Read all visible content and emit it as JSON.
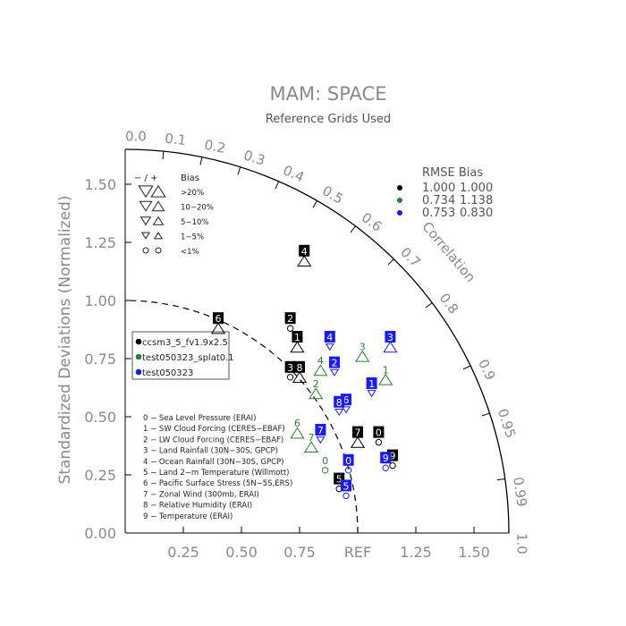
{
  "chart_data": {
    "type": "scatter",
    "subtype": "taylor-diagram",
    "title": "MAM: SPACE",
    "subtitle": "Reference Grids Used",
    "ylabel": "Standardized Deviations (Normalized)",
    "correlation_label": "Correlation",
    "ref_label": "REF",
    "std_range": [
      0,
      1.65
    ],
    "x_ticks": [
      "0.25",
      "0.50",
      "0.75",
      "REF",
      "1.25",
      "1.50"
    ],
    "x_tick_values": [
      0.25,
      0.5,
      0.75,
      1.0,
      1.25,
      1.5
    ],
    "y_ticks": [
      "0.00",
      "0.25",
      "0.50",
      "0.75",
      "1.00",
      "1.25",
      "1.50"
    ],
    "y_tick_values": [
      0,
      0.25,
      0.5,
      0.75,
      1.0,
      1.25,
      1.5
    ],
    "corr_ticks": [
      "0.0",
      "0.1",
      "0.2",
      "0.3",
      "0.4",
      "0.5",
      "0.6",
      "0.7",
      "0.8",
      "0.9",
      "0.95",
      "0.99",
      "1.0"
    ],
    "corr_tick_values": [
      0.0,
      0.1,
      0.2,
      0.3,
      0.4,
      0.5,
      0.6,
      0.7,
      0.8,
      0.9,
      0.95,
      0.99,
      1.0
    ],
    "bias_legend": {
      "header_sign": "− / +",
      "header_bias": "Bias",
      "rows": [
        ">20%",
        "10−20%",
        "5−10%",
        "1−5%",
        "<1%"
      ]
    },
    "rmse_bias_table": {
      "header": "RMSE  Bias",
      "rows": [
        {
          "rmse": "1.000",
          "bias": "1.000",
          "color": "#000000"
        },
        {
          "rmse": "0.734",
          "bias": "1.138",
          "color": "#2e7d32"
        },
        {
          "rmse": "0.753",
          "bias": "0.830",
          "color": "#1a1aff"
        }
      ]
    },
    "series": [
      {
        "name": "ccsm3_5_fv1.9x2.5",
        "color": "#000000",
        "boxed": true,
        "points": [
          {
            "id": "0",
            "x": 1.09,
            "y": 0.39,
            "marker": "circle"
          },
          {
            "id": "1",
            "x": 0.74,
            "y": 0.8,
            "marker": "up"
          },
          {
            "id": "2",
            "x": 0.71,
            "y": 0.88,
            "marker": "circle"
          },
          {
            "id": "3",
            "x": 0.71,
            "y": 0.67,
            "marker": "circle"
          },
          {
            "id": "4",
            "x": 0.77,
            "y": 1.17,
            "marker": "up"
          },
          {
            "id": "5",
            "x": 0.92,
            "y": 0.19,
            "marker": "circle"
          },
          {
            "id": "6",
            "x": 0.4,
            "y": 0.88,
            "marker": "up"
          },
          {
            "id": "7",
            "x": 1.0,
            "y": 0.39,
            "marker": "up"
          },
          {
            "id": "8",
            "x": 0.75,
            "y": 0.67,
            "marker": "up"
          },
          {
            "id": "9",
            "x": 1.15,
            "y": 0.29,
            "marker": "circle"
          }
        ]
      },
      {
        "name": "test050323_splat0.1",
        "color": "#2e7d32",
        "boxed": false,
        "points": [
          {
            "id": "0",
            "x": 0.86,
            "y": 0.27,
            "marker": "circle"
          },
          {
            "id": "1",
            "x": 1.12,
            "y": 0.66,
            "marker": "up"
          },
          {
            "id": "2",
            "x": 0.82,
            "y": 0.6,
            "marker": "up"
          },
          {
            "id": "3",
            "x": 1.02,
            "y": 0.76,
            "marker": "up"
          },
          {
            "id": "4",
            "x": 0.84,
            "y": 0.7,
            "marker": "up"
          },
          {
            "id": "6",
            "x": 0.74,
            "y": 0.43,
            "marker": "up"
          },
          {
            "id": "7",
            "x": 0.8,
            "y": 0.37,
            "marker": "up"
          }
        ]
      },
      {
        "name": "test050323",
        "color": "#1a1aff",
        "boxed": true,
        "points": [
          {
            "id": "0",
            "x": 0.96,
            "y": 0.27,
            "marker": "circle"
          },
          {
            "id": "1",
            "x": 1.06,
            "y": 0.6,
            "marker": "down"
          },
          {
            "id": "2",
            "x": 0.9,
            "y": 0.69,
            "marker": "down"
          },
          {
            "id": "3",
            "x": 1.14,
            "y": 0.8,
            "marker": "up"
          },
          {
            "id": "4",
            "x": 0.88,
            "y": 0.8,
            "marker": "down"
          },
          {
            "id": "5",
            "x": 0.95,
            "y": 0.16,
            "marker": "circle"
          },
          {
            "id": "6",
            "x": 0.95,
            "y": 0.53,
            "marker": "down"
          },
          {
            "id": "7",
            "x": 0.84,
            "y": 0.4,
            "marker": "down"
          },
          {
            "id": "8",
            "x": 0.92,
            "y": 0.52,
            "marker": "down"
          },
          {
            "id": "9",
            "x": 1.12,
            "y": 0.28,
            "marker": "circle"
          }
        ]
      }
    ],
    "variables": [
      "0 − Sea Level Pressure (ERAI)",
      "1 − SW Cloud Forcing (CERES−EBAF)",
      "2 − LW Cloud Forcing (CERES−EBAF)",
      "3 − Land Rainfall (30N−30S, GPCP)",
      "4 − Ocean Rainfall (30N−30S, GPCP)",
      "5 − Land 2−m Temperature (Willmott)",
      "6 − Pacific Surface Stress (5N−5S,ERS)",
      "7 − Zonal Wind (300mb, ERAI)",
      "8 − Relative Humidity (ERAI)",
      "9 − Temperature (ERAI)"
    ]
  }
}
